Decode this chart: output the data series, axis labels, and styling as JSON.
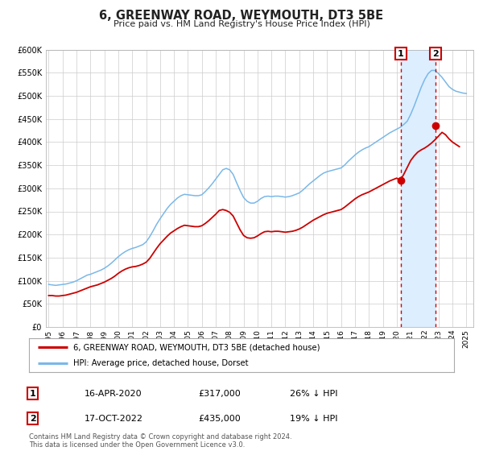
{
  "title": "6, GREENWAY ROAD, WEYMOUTH, DT3 5BE",
  "subtitle": "Price paid vs. HM Land Registry's House Price Index (HPI)",
  "background_color": "#ffffff",
  "plot_bg_color": "#ffffff",
  "grid_color": "#cccccc",
  "hpi_color": "#7ab8e8",
  "price_color": "#cc0000",
  "ylim": [
    0,
    600000
  ],
  "xlim_start": 1994.8,
  "xlim_end": 2025.5,
  "yticks": [
    0,
    50000,
    100000,
    150000,
    200000,
    250000,
    300000,
    350000,
    400000,
    450000,
    500000,
    550000,
    600000
  ],
  "ytick_labels": [
    "£0",
    "£50K",
    "£100K",
    "£150K",
    "£200K",
    "£250K",
    "£300K",
    "£350K",
    "£400K",
    "£450K",
    "£500K",
    "£550K",
    "£600K"
  ],
  "xticks": [
    1995,
    1996,
    1997,
    1998,
    1999,
    2000,
    2001,
    2002,
    2003,
    2004,
    2005,
    2006,
    2007,
    2008,
    2009,
    2010,
    2011,
    2012,
    2013,
    2014,
    2015,
    2016,
    2017,
    2018,
    2019,
    2020,
    2021,
    2022,
    2023,
    2024,
    2025
  ],
  "marker1_x": 2020.29,
  "marker1_y": 317000,
  "marker1_label": "1",
  "marker1_date": "16-APR-2020",
  "marker1_price": "£317,000",
  "marker1_hpi": "26% ↓ HPI",
  "marker2_x": 2022.79,
  "marker2_y": 435000,
  "marker2_label": "2",
  "marker2_date": "17-OCT-2022",
  "marker2_price": "£435,000",
  "marker2_hpi": "19% ↓ HPI",
  "legend_line1": "6, GREENWAY ROAD, WEYMOUTH, DT3 5BE (detached house)",
  "legend_line2": "HPI: Average price, detached house, Dorset",
  "footer1": "Contains HM Land Registry data © Crown copyright and database right 2024.",
  "footer2": "This data is licensed under the Open Government Licence v3.0.",
  "span_color": "#ddeeff",
  "hpi_data_x": [
    1995.0,
    1995.25,
    1995.5,
    1995.75,
    1996.0,
    1996.25,
    1996.5,
    1996.75,
    1997.0,
    1997.25,
    1997.5,
    1997.75,
    1998.0,
    1998.25,
    1998.5,
    1998.75,
    1999.0,
    1999.25,
    1999.5,
    1999.75,
    2000.0,
    2000.25,
    2000.5,
    2000.75,
    2001.0,
    2001.25,
    2001.5,
    2001.75,
    2002.0,
    2002.25,
    2002.5,
    2002.75,
    2003.0,
    2003.25,
    2003.5,
    2003.75,
    2004.0,
    2004.25,
    2004.5,
    2004.75,
    2005.0,
    2005.25,
    2005.5,
    2005.75,
    2006.0,
    2006.25,
    2006.5,
    2006.75,
    2007.0,
    2007.25,
    2007.5,
    2007.75,
    2008.0,
    2008.25,
    2008.5,
    2008.75,
    2009.0,
    2009.25,
    2009.5,
    2009.75,
    2010.0,
    2010.25,
    2010.5,
    2010.75,
    2011.0,
    2011.25,
    2011.5,
    2011.75,
    2012.0,
    2012.25,
    2012.5,
    2012.75,
    2013.0,
    2013.25,
    2013.5,
    2013.75,
    2014.0,
    2014.25,
    2014.5,
    2014.75,
    2015.0,
    2015.25,
    2015.5,
    2015.75,
    2016.0,
    2016.25,
    2016.5,
    2016.75,
    2017.0,
    2017.25,
    2017.5,
    2017.75,
    2018.0,
    2018.25,
    2018.5,
    2018.75,
    2019.0,
    2019.25,
    2019.5,
    2019.75,
    2020.0,
    2020.25,
    2020.5,
    2020.75,
    2021.0,
    2021.25,
    2021.5,
    2021.75,
    2022.0,
    2022.25,
    2022.5,
    2022.75,
    2023.0,
    2023.25,
    2023.5,
    2023.75,
    2024.0,
    2024.25,
    2024.5,
    2024.75,
    2025.0
  ],
  "hpi_data_y": [
    92000,
    91000,
    90000,
    91000,
    92000,
    93000,
    95000,
    97000,
    100000,
    104000,
    108000,
    112000,
    114000,
    117000,
    120000,
    123000,
    127000,
    132000,
    138000,
    145000,
    152000,
    158000,
    163000,
    167000,
    170000,
    172000,
    175000,
    178000,
    184000,
    195000,
    208000,
    222000,
    234000,
    245000,
    256000,
    265000,
    272000,
    279000,
    284000,
    287000,
    286000,
    285000,
    284000,
    284000,
    286000,
    293000,
    301000,
    310000,
    320000,
    330000,
    340000,
    343000,
    340000,
    330000,
    312000,
    295000,
    280000,
    272000,
    268000,
    268000,
    272000,
    278000,
    282000,
    283000,
    282000,
    283000,
    283000,
    282000,
    281000,
    282000,
    284000,
    287000,
    290000,
    296000,
    303000,
    310000,
    316000,
    322000,
    328000,
    333000,
    336000,
    338000,
    340000,
    342000,
    344000,
    350000,
    358000,
    365000,
    372000,
    378000,
    383000,
    387000,
    390000,
    395000,
    400000,
    405000,
    410000,
    415000,
    420000,
    424000,
    428000,
    432000,
    438000,
    445000,
    460000,
    478000,
    498000,
    518000,
    535000,
    548000,
    555000,
    555000,
    548000,
    540000,
    530000,
    520000,
    514000,
    510000,
    508000,
    506000,
    505000
  ],
  "price_data_x": [
    1995.0,
    1995.25,
    1995.5,
    1995.75,
    1996.0,
    1996.25,
    1996.5,
    1996.75,
    1997.0,
    1997.25,
    1997.5,
    1997.75,
    1998.0,
    1998.25,
    1998.5,
    1998.75,
    1999.0,
    1999.25,
    1999.5,
    1999.75,
    2000.0,
    2000.25,
    2000.5,
    2000.75,
    2001.0,
    2001.25,
    2001.5,
    2001.75,
    2002.0,
    2002.25,
    2002.5,
    2002.75,
    2003.0,
    2003.25,
    2003.5,
    2003.75,
    2004.0,
    2004.25,
    2004.5,
    2004.75,
    2005.0,
    2005.25,
    2005.5,
    2005.75,
    2006.0,
    2006.25,
    2006.5,
    2006.75,
    2007.0,
    2007.25,
    2007.5,
    2007.75,
    2008.0,
    2008.25,
    2008.5,
    2008.75,
    2009.0,
    2009.25,
    2009.5,
    2009.75,
    2010.0,
    2010.25,
    2010.5,
    2010.75,
    2011.0,
    2011.25,
    2011.5,
    2011.75,
    2012.0,
    2012.25,
    2012.5,
    2012.75,
    2013.0,
    2013.25,
    2013.5,
    2013.75,
    2014.0,
    2014.25,
    2014.5,
    2014.75,
    2015.0,
    2015.25,
    2015.5,
    2015.75,
    2016.0,
    2016.25,
    2016.5,
    2016.75,
    2017.0,
    2017.25,
    2017.5,
    2017.75,
    2018.0,
    2018.25,
    2018.5,
    2018.75,
    2019.0,
    2019.25,
    2019.5,
    2019.75,
    2020.0,
    2020.25,
    2020.5,
    2020.75,
    2021.0,
    2021.25,
    2021.5,
    2021.75,
    2022.0,
    2022.25,
    2022.5,
    2022.75,
    2023.0,
    2023.25,
    2023.5,
    2023.75,
    2024.0,
    2024.25,
    2024.5
  ],
  "price_data_y": [
    68000,
    68000,
    67000,
    67000,
    68000,
    69000,
    71000,
    73000,
    75000,
    78000,
    81000,
    84000,
    87000,
    89000,
    91000,
    94000,
    97000,
    101000,
    105000,
    110000,
    116000,
    121000,
    125000,
    128000,
    130000,
    131000,
    133000,
    136000,
    140000,
    148000,
    159000,
    170000,
    180000,
    188000,
    196000,
    203000,
    208000,
    213000,
    217000,
    220000,
    219000,
    218000,
    217000,
    217000,
    219000,
    224000,
    230000,
    237000,
    244000,
    252000,
    254000,
    252000,
    248000,
    240000,
    225000,
    210000,
    198000,
    193000,
    192000,
    193000,
    197000,
    202000,
    206000,
    207000,
    206000,
    207000,
    207000,
    206000,
    205000,
    206000,
    207000,
    209000,
    212000,
    216000,
    221000,
    226000,
    231000,
    235000,
    239000,
    243000,
    246000,
    248000,
    250000,
    252000,
    254000,
    259000,
    265000,
    271000,
    277000,
    282000,
    286000,
    289000,
    292000,
    296000,
    300000,
    304000,
    308000,
    312000,
    316000,
    319000,
    322000,
    317000,
    330000,
    345000,
    360000,
    370000,
    378000,
    383000,
    387000,
    392000,
    398000,
    405000,
    413000,
    421000,
    416000,
    407000,
    400000,
    395000,
    390000
  ]
}
